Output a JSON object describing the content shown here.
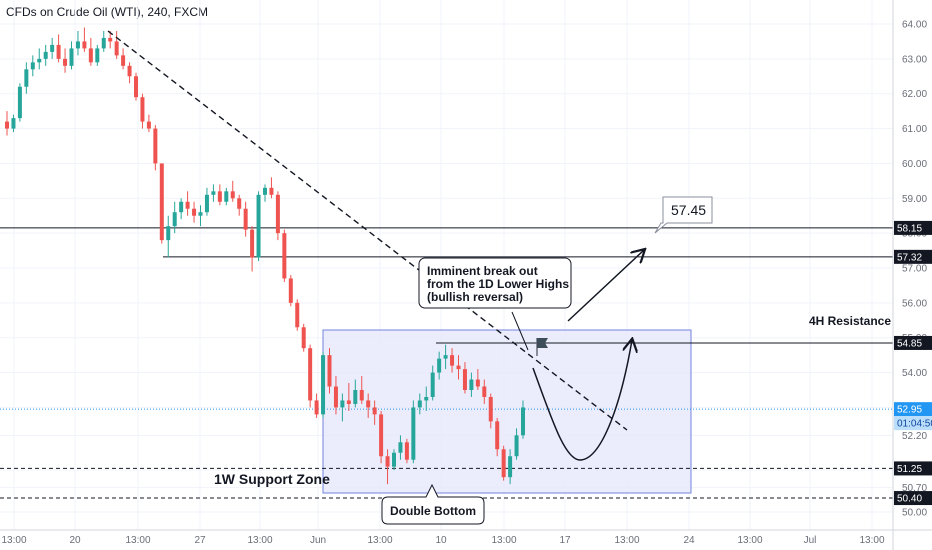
{
  "chart_data": {
    "type": "candlestick",
    "title": "CFDs on Crude Oil (WTI), 240, FXCM",
    "y_ticks": [
      "64.00",
      "63.00",
      "62.00",
      "61.00",
      "60.00",
      "59.00",
      "58.00",
      "57.00",
      "56.00",
      "55.00",
      "54.00",
      "53.00",
      "52.20",
      "51.20",
      "50.70",
      "50.00"
    ],
    "x_ticks": [
      "13:00",
      "20",
      "13:00",
      "27",
      "13:00",
      "Jun",
      "13:00",
      "10",
      "13:00",
      "17",
      "13:00",
      "24",
      "13:00",
      "Jul",
      "13:00"
    ],
    "price_labels": [
      {
        "text": "58.15",
        "value": 58.15,
        "style": "dark"
      },
      {
        "text": "57.32",
        "value": 57.32,
        "style": "dark"
      },
      {
        "text": "54.85",
        "value": 54.85,
        "style": "dark"
      },
      {
        "text": "52.95",
        "value": 52.95,
        "style": "blue"
      },
      {
        "text": "01:04:50",
        "value": 52.55,
        "style": "blue-light"
      },
      {
        "text": "51.25",
        "value": 51.25,
        "style": "dark"
      },
      {
        "text": "50.40",
        "value": 50.4,
        "style": "dark"
      }
    ],
    "annotations": {
      "breakout_lines": [
        "Imminent break out",
        "from the 1D Lower Highs",
        "(bullish reversal)"
      ],
      "target": "57.45",
      "resistance": "4H Resistance",
      "support": "1W Support Zone",
      "pattern": "Double Bottom"
    },
    "colors": {
      "up": "#26a69a",
      "down": "#ef5350",
      "box": "#e8eafc",
      "box_border": "#5b6fd6",
      "line": "#131722",
      "current": "#2196f3"
    },
    "candles": [
      [
        61.2,
        61.5,
        60.8,
        61.0
      ],
      [
        61.0,
        61.4,
        60.9,
        61.3
      ],
      [
        61.3,
        62.3,
        61.2,
        62.2
      ],
      [
        62.2,
        62.9,
        62.0,
        62.7
      ],
      [
        62.7,
        63.1,
        62.5,
        62.9
      ],
      [
        62.9,
        63.3,
        62.7,
        63.0
      ],
      [
        63.0,
        63.4,
        62.8,
        63.2
      ],
      [
        63.2,
        63.6,
        63.0,
        63.4
      ],
      [
        63.4,
        63.7,
        62.9,
        63.0
      ],
      [
        63.0,
        63.3,
        62.6,
        62.8
      ],
      [
        62.8,
        63.5,
        62.7,
        63.3
      ],
      [
        63.3,
        63.8,
        63.1,
        63.5
      ],
      [
        63.5,
        63.9,
        63.2,
        63.3
      ],
      [
        63.3,
        63.6,
        62.8,
        62.9
      ],
      [
        62.9,
        63.4,
        62.8,
        63.3
      ],
      [
        63.3,
        63.8,
        63.2,
        63.6
      ],
      [
        63.6,
        63.8,
        63.3,
        63.5
      ],
      [
        63.5,
        63.8,
        63.0,
        63.1
      ],
      [
        63.1,
        63.3,
        62.7,
        62.8
      ],
      [
        62.8,
        62.9,
        62.3,
        62.5
      ],
      [
        62.5,
        62.6,
        61.8,
        61.9
      ],
      [
        61.9,
        62.0,
        61.0,
        61.2
      ],
      [
        61.2,
        61.4,
        60.9,
        61.0
      ],
      [
        61.0,
        61.1,
        59.8,
        60.0
      ],
      [
        60.0,
        60.0,
        57.7,
        57.8
      ],
      [
        57.8,
        58.5,
        57.3,
        58.2
      ],
      [
        58.2,
        58.9,
        58.0,
        58.6
      ],
      [
        58.6,
        59.0,
        58.4,
        58.9
      ],
      [
        58.9,
        59.2,
        58.5,
        58.7
      ],
      [
        58.7,
        58.9,
        58.3,
        58.5
      ],
      [
        58.5,
        58.8,
        58.2,
        58.6
      ],
      [
        58.6,
        59.3,
        58.5,
        59.1
      ],
      [
        59.1,
        59.4,
        58.9,
        59.2
      ],
      [
        59.2,
        59.4,
        58.8,
        58.9
      ],
      [
        58.9,
        59.3,
        58.8,
        59.2
      ],
      [
        59.2,
        59.5,
        58.9,
        59.0
      ],
      [
        59.0,
        59.1,
        58.5,
        58.7
      ],
      [
        58.7,
        58.9,
        57.9,
        58.1
      ],
      [
        58.1,
        58.2,
        56.9,
        57.3
      ],
      [
        57.3,
        59.2,
        57.2,
        59.1
      ],
      [
        59.1,
        59.4,
        58.9,
        59.3
      ],
      [
        59.3,
        59.6,
        59.0,
        59.1
      ],
      [
        59.1,
        59.2,
        57.8,
        58.0
      ],
      [
        58.0,
        58.1,
        56.6,
        56.7
      ],
      [
        56.7,
        56.8,
        55.9,
        56.0
      ],
      [
        56.0,
        56.1,
        55.2,
        55.3
      ],
      [
        55.3,
        55.4,
        54.6,
        54.7
      ],
      [
        54.7,
        54.8,
        53.0,
        53.2
      ],
      [
        53.2,
        53.4,
        52.7,
        52.8
      ],
      [
        52.8,
        54.6,
        52.7,
        54.5
      ],
      [
        54.5,
        54.7,
        53.4,
        53.6
      ],
      [
        53.6,
        53.9,
        52.8,
        53.0
      ],
      [
        53.0,
        53.4,
        52.6,
        53.2
      ],
      [
        53.2,
        53.7,
        52.9,
        53.1
      ],
      [
        53.1,
        53.8,
        53.0,
        53.5
      ],
      [
        53.5,
        53.9,
        53.1,
        53.2
      ],
      [
        53.2,
        53.4,
        52.7,
        53.0
      ],
      [
        53.0,
        53.2,
        52.5,
        52.8
      ],
      [
        52.8,
        52.9,
        51.4,
        51.6
      ],
      [
        51.6,
        51.8,
        50.8,
        51.3
      ],
      [
        51.3,
        51.8,
        51.2,
        51.7
      ],
      [
        51.7,
        52.2,
        51.5,
        52.0
      ],
      [
        52.0,
        52.1,
        51.4,
        51.5
      ],
      [
        51.5,
        53.2,
        51.4,
        53.0
      ],
      [
        53.0,
        53.4,
        52.8,
        53.2
      ],
      [
        53.2,
        53.6,
        52.9,
        53.3
      ],
      [
        53.3,
        54.2,
        53.2,
        54.0
      ],
      [
        54.0,
        54.6,
        53.8,
        54.4
      ],
      [
        54.4,
        54.8,
        54.1,
        54.5
      ],
      [
        54.5,
        54.7,
        54.0,
        54.2
      ],
      [
        54.2,
        54.5,
        53.8,
        54.1
      ],
      [
        54.1,
        54.3,
        53.4,
        53.5
      ],
      [
        53.5,
        54.0,
        53.3,
        53.8
      ],
      [
        53.8,
        54.1,
        53.5,
        53.6
      ],
      [
        53.6,
        53.8,
        53.1,
        53.3
      ],
      [
        53.3,
        53.4,
        52.4,
        52.6
      ],
      [
        52.6,
        52.7,
        51.6,
        51.8
      ],
      [
        51.8,
        51.9,
        50.9,
        51.0
      ],
      [
        51.0,
        51.8,
        50.8,
        51.6
      ],
      [
        51.6,
        52.4,
        51.5,
        52.2
      ],
      [
        52.2,
        53.2,
        52.1,
        53.0
      ]
    ]
  }
}
